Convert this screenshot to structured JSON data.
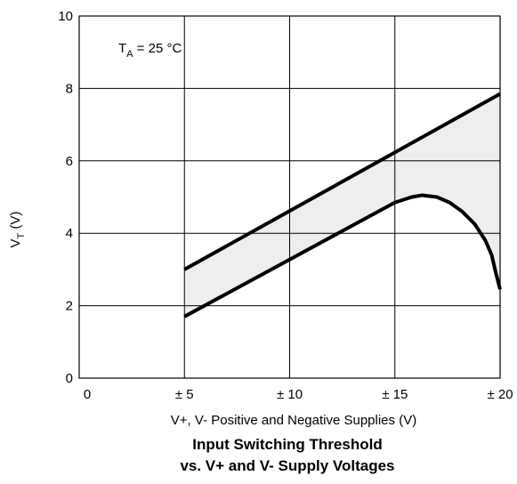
{
  "chart_data": {
    "type": "area",
    "title": "Input Switching Threshold",
    "subtitle": "vs. V+ and V- Supply Voltages",
    "xlabel": "V+, V- Positive and Negative Supplies (V)",
    "ylabel_main": "V",
    "ylabel_sub": "T",
    "ylabel_unit": "(V)",
    "annotation": {
      "main": "T",
      "sub": "A",
      "rest": " = 25 °C"
    },
    "xlim": [
      0,
      20
    ],
    "ylim": [
      0,
      10
    ],
    "x_ticks": [
      {
        "value": 0,
        "label": "0"
      },
      {
        "value": 5,
        "label": "± 5"
      },
      {
        "value": 10,
        "label": "± 10"
      },
      {
        "value": 15,
        "label": "± 15"
      },
      {
        "value": 20,
        "label": "± 20"
      }
    ],
    "y_ticks": [
      {
        "value": 0,
        "label": "0"
      },
      {
        "value": 2,
        "label": "2"
      },
      {
        "value": 4,
        "label": "4"
      },
      {
        "value": 6,
        "label": "6"
      },
      {
        "value": 8,
        "label": "8"
      },
      {
        "value": 10,
        "label": "10"
      }
    ],
    "grid": true,
    "series": [
      {
        "x": [
          5,
          20
        ],
        "y": [
          3.0,
          7.85
        ]
      },
      {
        "x": [
          5,
          15,
          15.8,
          16.3,
          17.0,
          17.6,
          18.2,
          18.8,
          19.3,
          19.6,
          19.8,
          20.0
        ],
        "y": [
          1.7,
          4.85,
          5.0,
          5.05,
          5.0,
          4.85,
          4.6,
          4.25,
          3.8,
          3.4,
          2.9,
          2.45
        ]
      }
    ],
    "fill_between": true,
    "fill_color": "#eeeeee",
    "line_color": "#000000"
  }
}
